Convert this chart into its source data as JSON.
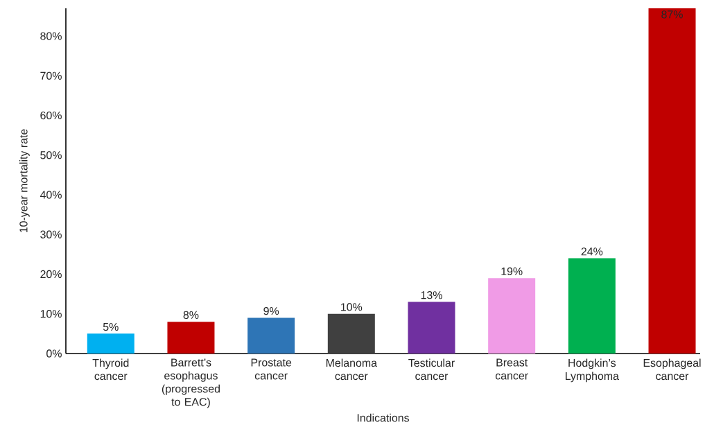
{
  "chart_data": {
    "type": "bar",
    "xlabel": "Indications",
    "ylabel": "10-year mortality rate",
    "categories": [
      "Thyroid cancer",
      "Barrett’s esophagus (progressed to EAC)",
      "Prostate cancer",
      "Melanoma cancer",
      "Testicular cancer",
      "Breast cancer",
      "Hodgkin’s Lymphoma",
      "Esophageal cancer"
    ],
    "values": [
      5,
      8,
      9,
      10,
      13,
      19,
      24,
      87
    ],
    "colors": [
      "#00b0f0",
      "#c00000",
      "#2e75b6",
      "#404040",
      "#7030a0",
      "#f09be6",
      "#00b050",
      "#c00000"
    ],
    "value_labels": [
      "5%",
      "8%",
      "9%",
      "10%",
      "13%",
      "19%",
      "24%",
      "87%"
    ],
    "ylim": [
      0,
      87
    ],
    "yticks": [
      {
        "value": 0,
        "label": "0%"
      },
      {
        "value": 10,
        "label": "10%"
      },
      {
        "value": 20,
        "label": "20%"
      },
      {
        "value": 30,
        "label": "30%"
      },
      {
        "value": 40,
        "label": "40%"
      },
      {
        "value": 50,
        "label": "50%"
      },
      {
        "value": 60,
        "label": "60%"
      },
      {
        "value": 70,
        "label": "70%"
      },
      {
        "value": 80,
        "label": "80%"
      }
    ],
    "grid": false
  }
}
